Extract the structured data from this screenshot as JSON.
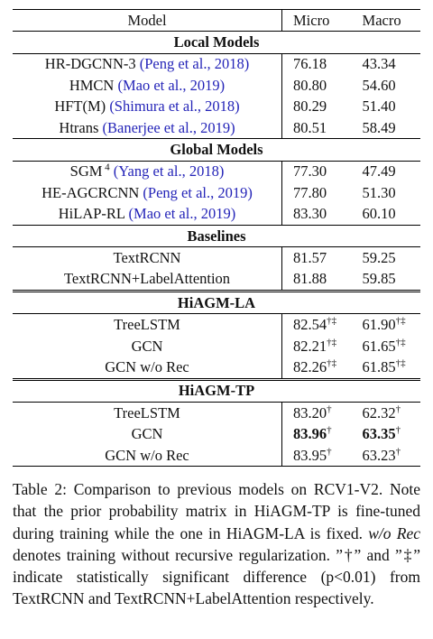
{
  "table": {
    "header": [
      "Model",
      "Micro",
      "Macro"
    ],
    "sections": [
      {
        "title": "Local Models",
        "rows": [
          {
            "model": "HR-DGCNN-3",
            "cite": "(Peng et al., 2018)",
            "micro": "76.18",
            "macro": "43.34"
          },
          {
            "model": "HMCN",
            "cite": "(Mao et al., 2019)",
            "micro": "80.80",
            "macro": "54.60"
          },
          {
            "model": "HFT(M)",
            "cite": "(Shimura et al., 2018)",
            "micro": "80.29",
            "macro": "51.40"
          },
          {
            "model": "Htrans",
            "cite": "(Banerjee et al., 2019)",
            "micro": "80.51",
            "macro": "58.49"
          }
        ]
      },
      {
        "title": "Global Models",
        "rows": [
          {
            "model": "SGM",
            "note": "4",
            "cite": "(Yang et al., 2018)",
            "micro": "77.30",
            "macro": "47.49"
          },
          {
            "model": "HE-AGCRCNN",
            "cite": "(Peng et al., 2019)",
            "micro": "77.80",
            "macro": "51.30"
          },
          {
            "model": "HiLAP-RL",
            "cite": "(Mao et al., 2019)",
            "micro": "83.30",
            "macro": "60.10"
          }
        ]
      },
      {
        "title": "Baselines",
        "rows": [
          {
            "model": "TextRCNN",
            "micro": "81.57",
            "macro": "59.25"
          },
          {
            "model": "TextRCNN+LabelAttention",
            "micro": "81.88",
            "macro": "59.85"
          }
        ]
      },
      {
        "title": "HiAGM-LA",
        "rows": [
          {
            "model": "TreeLSTM",
            "micro": "82.54",
            "micro_sig": "†‡",
            "macro": "61.90",
            "macro_sig": "†‡"
          },
          {
            "model": "GCN",
            "micro": "82.21",
            "micro_sig": "†‡",
            "macro": "61.65",
            "macro_sig": "†‡"
          },
          {
            "model": "GCN w/o Rec",
            "micro": "82.26",
            "micro_sig": "†‡",
            "macro": "61.85",
            "macro_sig": "†‡"
          }
        ]
      },
      {
        "title": "HiAGM-TP",
        "rows": [
          {
            "model": "TreeLSTM",
            "micro": "83.20",
            "micro_sig": "†",
            "macro": "62.32",
            "macro_sig": "†"
          },
          {
            "model": "GCN",
            "micro": "83.96",
            "micro_sig": "†",
            "macro": "63.35",
            "macro_sig": "†"
          },
          {
            "model": "GCN w/o Rec",
            "micro": "83.95",
            "micro_sig": "†",
            "macro": "63.23",
            "macro_sig": "†"
          }
        ]
      }
    ]
  },
  "caption": {
    "text": [
      "Table 2:  Comparison to previous models on RCV1-V2. Note that the prior probability matrix in HiAGM-TP is fine-tuned during training while the one in HiAGM-LA is fixed. ",
      "w/o Rec",
      " denotes training without recursive regularization. ”†” and ”‡” indicate statistically significant difference (p<0.01) from TextRCNN and TextRCNN+LabelAttention respectively."
    ]
  }
}
